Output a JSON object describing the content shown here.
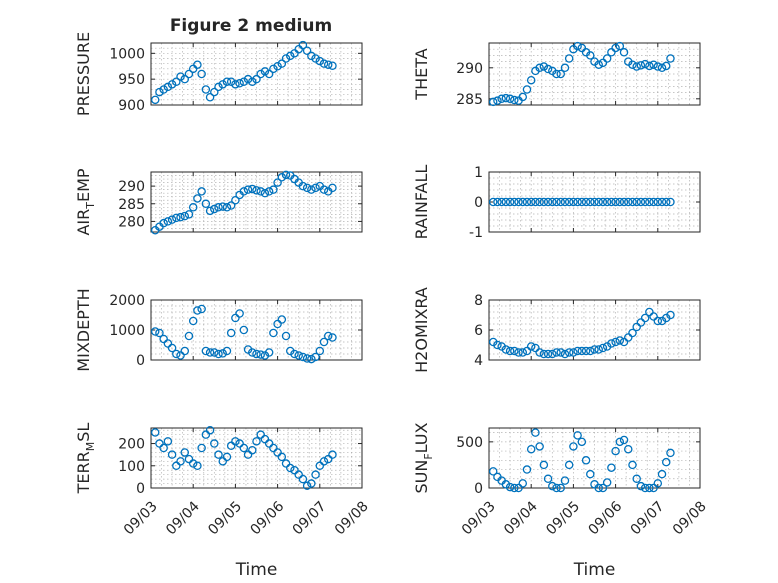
{
  "figure": {
    "title": "Figure 2 medium",
    "xlabel": "Time"
  },
  "colors": {
    "marker": "#0072bd",
    "axis": "#262626",
    "grid": "#9a9a9a",
    "background": "#ffffff"
  },
  "chart_data": [
    {
      "type": "scatter",
      "title": "Figure 2 medium",
      "xlabel": "",
      "ylabel": "PRESSURE",
      "xlim": [
        "09/03",
        "09/08"
      ],
      "ylim": [
        900,
        1020
      ],
      "yticks": [
        900,
        950,
        1000
      ],
      "grid": true,
      "marker": "circle",
      "x": [
        3.1,
        3.2,
        3.3,
        3.4,
        3.5,
        3.6,
        3.7,
        3.8,
        3.9,
        4.0,
        4.1,
        4.2,
        4.3,
        4.4,
        4.5,
        4.6,
        4.7,
        4.8,
        4.9,
        5.0,
        5.1,
        5.2,
        5.3,
        5.4,
        5.5,
        5.6,
        5.7,
        5.8,
        5.9,
        6.0,
        6.1,
        6.2,
        6.3,
        6.4,
        6.5,
        6.6,
        6.7,
        6.8,
        6.9,
        7.0,
        7.1,
        7.2,
        7.3
      ],
      "y": [
        910,
        925,
        930,
        935,
        940,
        945,
        955,
        950,
        960,
        970,
        978,
        960,
        930,
        915,
        925,
        935,
        940,
        945,
        945,
        940,
        942,
        945,
        950,
        945,
        950,
        960,
        965,
        960,
        970,
        975,
        980,
        990,
        995,
        1000,
        1008,
        1016,
        1005,
        995,
        990,
        985,
        980,
        978,
        976
      ]
    },
    {
      "type": "scatter",
      "xlabel": "",
      "ylabel": "THETA",
      "xlim": [
        "09/03",
        "09/08"
      ],
      "ylim": [
        284,
        294
      ],
      "yticks": [
        285,
        290
      ],
      "grid": true,
      "marker": "circle",
      "x": [
        3.1,
        3.2,
        3.3,
        3.4,
        3.5,
        3.6,
        3.7,
        3.8,
        3.9,
        4.0,
        4.1,
        4.2,
        4.3,
        4.4,
        4.5,
        4.6,
        4.7,
        4.8,
        4.9,
        5.0,
        5.1,
        5.2,
        5.3,
        5.4,
        5.5,
        5.6,
        5.7,
        5.8,
        5.9,
        6.0,
        6.1,
        6.2,
        6.3,
        6.4,
        6.5,
        6.6,
        6.7,
        6.8,
        6.9,
        7.0,
        7.1,
        7.2,
        7.3
      ],
      "y": [
        284.5,
        284.7,
        285.0,
        285.1,
        285.0,
        284.8,
        284.7,
        285.3,
        286.5,
        288.0,
        289.5,
        290.0,
        290.2,
        289.8,
        289.5,
        289.0,
        289.0,
        290.0,
        291.5,
        293.0,
        293.5,
        293.2,
        292.5,
        292.0,
        291.0,
        290.5,
        290.8,
        291.5,
        292.5,
        293.2,
        293.5,
        292.5,
        291.0,
        290.5,
        290.2,
        290.4,
        290.6,
        290.3,
        290.5,
        290.2,
        290.0,
        290.3,
        291.5
      ]
    },
    {
      "type": "scatter",
      "xlabel": "",
      "ylabel": "AIR_TEMP",
      "ylabel_main": "AIR",
      "ylabel_sub": "T",
      "ylabel_rest": "EMP",
      "xlim": [
        "09/03",
        "09/08"
      ],
      "ylim": [
        277,
        294
      ],
      "yticks": [
        280,
        285,
        290
      ],
      "grid": true,
      "marker": "circle",
      "x": [
        3.1,
        3.2,
        3.3,
        3.4,
        3.5,
        3.6,
        3.7,
        3.8,
        3.9,
        4.0,
        4.1,
        4.2,
        4.3,
        4.4,
        4.5,
        4.6,
        4.7,
        4.8,
        4.9,
        5.0,
        5.1,
        5.2,
        5.3,
        5.4,
        5.5,
        5.6,
        5.7,
        5.8,
        5.9,
        6.0,
        6.1,
        6.2,
        6.3,
        6.4,
        6.5,
        6.6,
        6.7,
        6.8,
        6.9,
        7.0,
        7.1,
        7.2,
        7.3
      ],
      "y": [
        277.5,
        278.5,
        279.5,
        280.0,
        280.5,
        281.0,
        281.2,
        281.5,
        282.0,
        284.0,
        286.5,
        288.5,
        285.0,
        283.0,
        283.5,
        284.0,
        284.2,
        284.0,
        284.5,
        286.0,
        287.5,
        288.5,
        289.0,
        289.2,
        288.8,
        288.5,
        288.0,
        288.5,
        289.0,
        291.0,
        292.5,
        293.2,
        293.0,
        292.0,
        291.0,
        290.0,
        289.5,
        289.0,
        289.5,
        290.0,
        289.0,
        288.5,
        289.5
      ]
    },
    {
      "type": "scatter",
      "xlabel": "",
      "ylabel": "RAINFALL",
      "xlim": [
        "09/03",
        "09/08"
      ],
      "ylim": [
        -1,
        1
      ],
      "yticks": [
        -1,
        0,
        1
      ],
      "grid": true,
      "marker": "circle",
      "x": [
        3.1,
        3.2,
        3.3,
        3.4,
        3.5,
        3.6,
        3.7,
        3.8,
        3.9,
        4.0,
        4.1,
        4.2,
        4.3,
        4.4,
        4.5,
        4.6,
        4.7,
        4.8,
        4.9,
        5.0,
        5.1,
        5.2,
        5.3,
        5.4,
        5.5,
        5.6,
        5.7,
        5.8,
        5.9,
        6.0,
        6.1,
        6.2,
        6.3,
        6.4,
        6.5,
        6.6,
        6.7,
        6.8,
        6.9,
        7.0,
        7.1,
        7.2,
        7.3
      ],
      "y": [
        0,
        0,
        0,
        0,
        0,
        0,
        0,
        0,
        0,
        0,
        0,
        0,
        0,
        0,
        0,
        0,
        0,
        0,
        0,
        0,
        0,
        0,
        0,
        0,
        0,
        0,
        0,
        0,
        0,
        0,
        0,
        0,
        0,
        0,
        0,
        0,
        0,
        0,
        0,
        0,
        0,
        0,
        0
      ]
    },
    {
      "type": "scatter",
      "xlabel": "",
      "ylabel": "MIXDEPTH",
      "xlim": [
        "09/03",
        "09/08"
      ],
      "ylim": [
        0,
        2000
      ],
      "yticks": [
        0,
        1000,
        2000
      ],
      "grid": true,
      "marker": "circle",
      "x": [
        3.1,
        3.2,
        3.3,
        3.4,
        3.5,
        3.6,
        3.7,
        3.8,
        3.9,
        4.0,
        4.1,
        4.2,
        4.3,
        4.4,
        4.5,
        4.6,
        4.7,
        4.8,
        4.9,
        5.0,
        5.1,
        5.2,
        5.3,
        5.4,
        5.5,
        5.6,
        5.7,
        5.8,
        5.9,
        6.0,
        6.1,
        6.2,
        6.3,
        6.4,
        6.5,
        6.6,
        6.7,
        6.8,
        6.9,
        7.0,
        7.1,
        7.2,
        7.3
      ],
      "y": [
        950,
        900,
        700,
        550,
        400,
        200,
        150,
        300,
        800,
        1300,
        1650,
        1700,
        300,
        250,
        250,
        200,
        220,
        300,
        900,
        1400,
        1550,
        1000,
        350,
        250,
        200,
        180,
        150,
        250,
        900,
        1200,
        1350,
        800,
        300,
        200,
        150,
        100,
        50,
        30,
        100,
        300,
        600,
        800,
        750
      ]
    },
    {
      "type": "scatter",
      "xlabel": "",
      "ylabel": "H2OMIXRA",
      "xlim": [
        "09/03",
        "09/08"
      ],
      "ylim": [
        4,
        8
      ],
      "yticks": [
        4,
        6,
        8
      ],
      "grid": true,
      "marker": "circle",
      "x": [
        3.1,
        3.2,
        3.3,
        3.4,
        3.5,
        3.6,
        3.7,
        3.8,
        3.9,
        4.0,
        4.1,
        4.2,
        4.3,
        4.4,
        4.5,
        4.6,
        4.7,
        4.8,
        4.9,
        5.0,
        5.1,
        5.2,
        5.3,
        5.4,
        5.5,
        5.6,
        5.7,
        5.8,
        5.9,
        6.0,
        6.1,
        6.2,
        6.3,
        6.4,
        6.5,
        6.6,
        6.7,
        6.8,
        6.9,
        7.0,
        7.1,
        7.2,
        7.3
      ],
      "y": [
        5.2,
        5.0,
        4.9,
        4.7,
        4.6,
        4.6,
        4.5,
        4.5,
        4.6,
        4.9,
        4.8,
        4.5,
        4.4,
        4.4,
        4.4,
        4.5,
        4.5,
        4.4,
        4.5,
        4.5,
        4.6,
        4.6,
        4.6,
        4.6,
        4.7,
        4.7,
        4.8,
        4.9,
        5.1,
        5.2,
        5.3,
        5.2,
        5.5,
        5.8,
        6.2,
        6.5,
        6.8,
        7.2,
        6.9,
        6.6,
        6.6,
        6.8,
        7.0
      ]
    },
    {
      "type": "scatter",
      "xlabel": "Time",
      "ylabel": "TERR_MSL",
      "ylabel_main": "TERR",
      "ylabel_sub": "M",
      "ylabel_rest": "SL",
      "xlim": [
        "09/03",
        "09/08"
      ],
      "ylim": [
        0,
        270
      ],
      "yticks": [
        0,
        100,
        200
      ],
      "xticks": [
        "09/03",
        "09/04",
        "09/05",
        "09/06",
        "09/07",
        "09/08"
      ],
      "grid": true,
      "marker": "circle",
      "x": [
        3.1,
        3.2,
        3.3,
        3.4,
        3.5,
        3.6,
        3.7,
        3.8,
        3.9,
        4.0,
        4.1,
        4.2,
        4.3,
        4.4,
        4.5,
        4.6,
        4.7,
        4.8,
        4.9,
        5.0,
        5.1,
        5.2,
        5.3,
        5.4,
        5.5,
        5.6,
        5.7,
        5.8,
        5.9,
        6.0,
        6.1,
        6.2,
        6.3,
        6.4,
        6.5,
        6.6,
        6.7,
        6.8,
        6.9,
        7.0,
        7.1,
        7.2,
        7.3
      ],
      "y": [
        250,
        200,
        180,
        210,
        150,
        100,
        120,
        160,
        130,
        110,
        100,
        180,
        240,
        260,
        200,
        150,
        120,
        140,
        190,
        210,
        200,
        180,
        150,
        170,
        210,
        240,
        220,
        200,
        180,
        160,
        140,
        110,
        90,
        80,
        60,
        40,
        10,
        20,
        60,
        100,
        120,
        130,
        150
      ]
    },
    {
      "type": "scatter",
      "xlabel": "Time",
      "ylabel": "SUN_FLUX",
      "ylabel_main": "SUN",
      "ylabel_sub": "F",
      "ylabel_rest": "LUX",
      "xlim": [
        "09/03",
        "09/08"
      ],
      "ylim": [
        0,
        650
      ],
      "yticks": [
        0,
        500
      ],
      "xticks": [
        "09/03",
        "09/04",
        "09/05",
        "09/06",
        "09/07",
        "09/08"
      ],
      "grid": true,
      "marker": "circle",
      "x": [
        3.1,
        3.2,
        3.3,
        3.4,
        3.5,
        3.6,
        3.7,
        3.8,
        3.9,
        4.0,
        4.1,
        4.2,
        4.3,
        4.4,
        4.5,
        4.6,
        4.7,
        4.8,
        4.9,
        5.0,
        5.1,
        5.2,
        5.3,
        5.4,
        5.5,
        5.6,
        5.7,
        5.8,
        5.9,
        6.0,
        6.1,
        6.2,
        6.3,
        6.4,
        6.5,
        6.6,
        6.7,
        6.8,
        6.9,
        7.0,
        7.1,
        7.2,
        7.3
      ],
      "y": [
        180,
        120,
        80,
        40,
        10,
        0,
        0,
        50,
        200,
        420,
        600,
        450,
        250,
        100,
        20,
        0,
        0,
        80,
        250,
        450,
        570,
        500,
        300,
        150,
        40,
        0,
        0,
        60,
        220,
        400,
        500,
        520,
        420,
        250,
        100,
        20,
        0,
        0,
        0,
        50,
        150,
        280,
        380
      ]
    }
  ]
}
